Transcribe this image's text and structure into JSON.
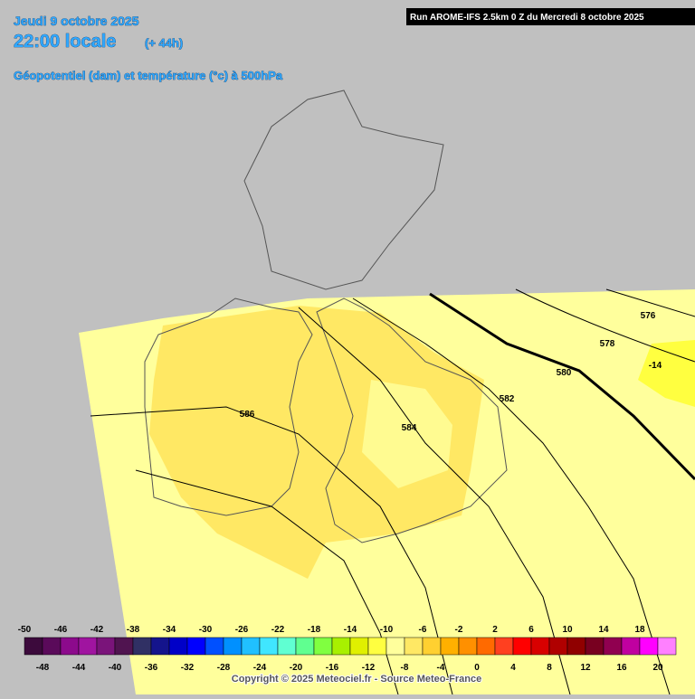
{
  "header": {
    "date": "Jeudi 9 octobre 2025",
    "time": "22:00 locale",
    "lead": "(+ 44h)",
    "field": "Géopotentiel (dam) et température (°c) à 500hPa",
    "run": "Run AROME-IFS 2.5km 0 Z du Mercredi 8 octobre 2025"
  },
  "contour_labels": [
    {
      "text": "576"
    },
    {
      "text": "578"
    },
    {
      "text": "580"
    },
    {
      "text": "582"
    },
    {
      "text": "584"
    },
    {
      "text": "586"
    },
    {
      "text": "-14"
    }
  ],
  "legend": {
    "labels_top": [
      "-50",
      "-46",
      "-42",
      "-38",
      "-34",
      "-30",
      "-26",
      "-22",
      "-18",
      "-14",
      "-10",
      "-6",
      "-2",
      "2",
      "6",
      "10",
      "14",
      "18"
    ],
    "labels_bottom": [
      "-48",
      "-44",
      "-40",
      "-36",
      "-32",
      "-28",
      "-24",
      "-20",
      "-16",
      "-12",
      "-8",
      "-4",
      "0",
      "4",
      "8",
      "12",
      "16",
      "20"
    ],
    "colors": [
      "#3c0a3c",
      "#5a0a5a",
      "#8c0a8c",
      "#a014a0",
      "#7a147a",
      "#501450",
      "#303064",
      "#14148c",
      "#0000c8",
      "#0000ff",
      "#0050ff",
      "#0090ff",
      "#20c0ff",
      "#40e6ff",
      "#60ffd2",
      "#60ff90",
      "#80ff40",
      "#a8f000",
      "#e0f000",
      "#ffff40",
      "#ffff9c",
      "#ffe864",
      "#ffd030",
      "#ffb000",
      "#ff9000",
      "#ff6a00",
      "#ff4020",
      "#ff0000",
      "#d80000",
      "#b00000",
      "#900000",
      "#780020",
      "#900050",
      "#c000a0",
      "#ff00ff",
      "#ff80ff"
    ]
  },
  "copyright": "Copyright © 2025 Meteociel.fr - Source Meteo-France"
}
